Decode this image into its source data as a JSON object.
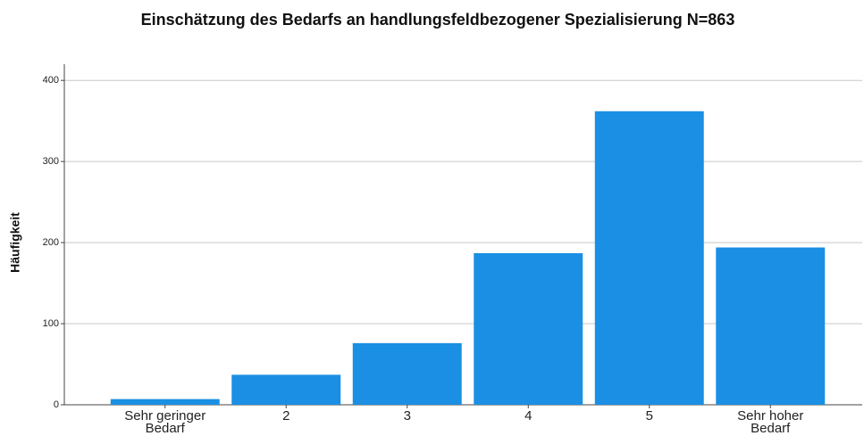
{
  "chart_data": {
    "type": "bar",
    "title": "Einschätzung des Bedarfs an handlungsfeldbezogener Spezialisierung N=863",
    "y_label": "Häufigkeit",
    "categories": [
      "Sehr geringer Bedarf",
      "2",
      "3",
      "4",
      "5",
      "Sehr hoher Bedarf"
    ],
    "values": [
      7,
      37,
      76,
      187,
      362,
      194
    ],
    "color": "#1a8fe3",
    "ylim": [
      0,
      420
    ],
    "yticks": [
      0,
      100,
      200,
      300,
      400
    ],
    "grid": true
  }
}
